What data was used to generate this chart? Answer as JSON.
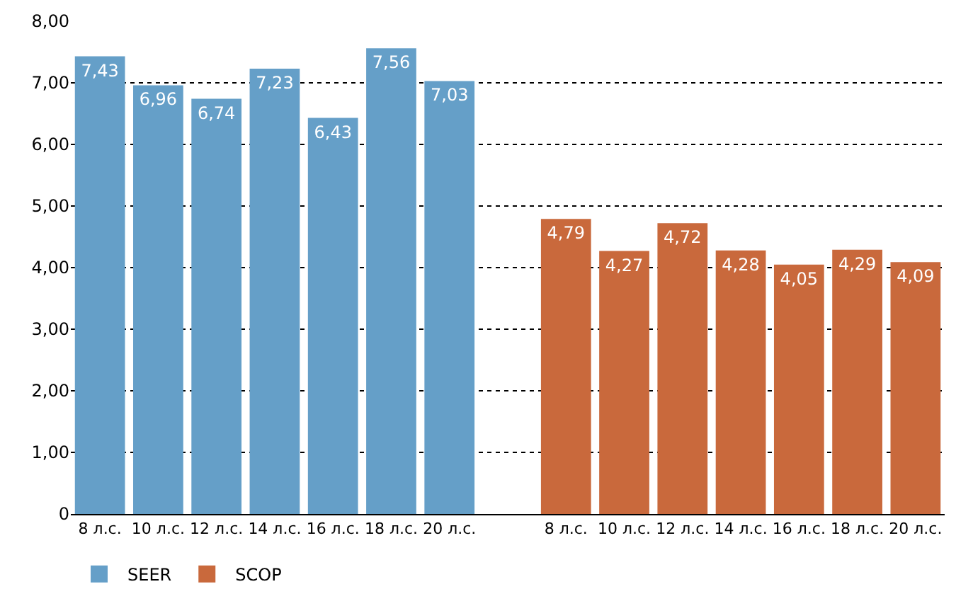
{
  "chart_data": {
    "type": "bar",
    "categories": [
      "8 л.с.",
      "10 л.с.",
      "12 л.с.",
      "14 л.с.",
      "16 л.с.",
      "18 л.с.",
      "20 л.с.",
      null,
      "8 л.с.",
      "10 л.с.",
      "12 л.с.",
      "14 л.с.",
      "16 л.с.",
      "18 л.с.",
      "20 л.с."
    ],
    "series": [
      {
        "name": "SEER",
        "color": "#659fc8",
        "values": [
          7.43,
          6.96,
          6.74,
          7.23,
          6.43,
          7.56,
          7.03,
          null,
          null,
          null,
          null,
          null,
          null,
          null,
          null
        ],
        "value_labels": [
          "7,43",
          "6,96",
          "6,74",
          "7,23",
          "6,43",
          "7,56",
          "7,03",
          null,
          null,
          null,
          null,
          null,
          null,
          null,
          null
        ]
      },
      {
        "name": "SCOP",
        "color": "#c9693c",
        "values": [
          null,
          null,
          null,
          null,
          null,
          null,
          null,
          null,
          4.79,
          4.27,
          4.72,
          4.28,
          4.05,
          4.29,
          4.09
        ],
        "value_labels": [
          null,
          null,
          null,
          null,
          null,
          null,
          null,
          null,
          "4,79",
          "4,27",
          "4,72",
          "4,28",
          "4,05",
          "4,29",
          "4,09"
        ]
      }
    ],
    "ylim": [
      0,
      8
    ],
    "yticks": [
      0,
      {
        "value": 1,
        "label": "1,00"
      },
      {
        "value": 2,
        "label": "2,00"
      },
      {
        "value": 3,
        "label": "3,00"
      },
      {
        "value": 4,
        "label": "4,00"
      },
      {
        "value": 5,
        "label": "5,00"
      },
      {
        "value": 6,
        "label": "6,00"
      },
      {
        "value": 7,
        "label": "7,00"
      },
      {
        "value": 8,
        "label": "8,00"
      }
    ],
    "grid": "y",
    "legend": "bottom left"
  }
}
